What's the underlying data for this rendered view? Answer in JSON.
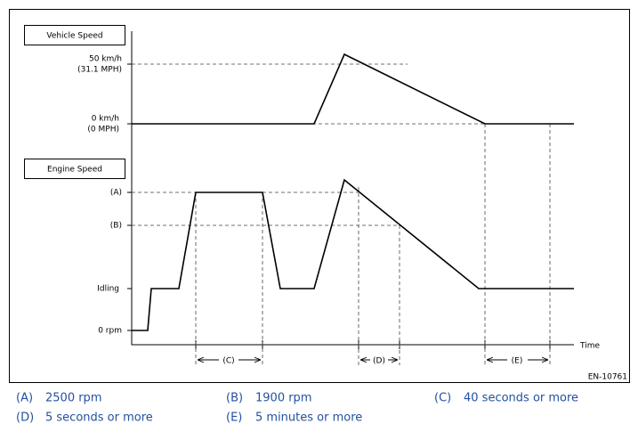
{
  "vehicle_speed": {
    "title": "Vehicle Speed",
    "high": [
      "50 km/h",
      "(31.1 MPH)"
    ],
    "zero": [
      "0 km/h",
      "(0 MPH)"
    ]
  },
  "engine_speed": {
    "title": "Engine Speed",
    "levels": [
      "(A)",
      "(B)",
      "Idling",
      "0 rpm"
    ]
  },
  "time_axis": {
    "label": "Time",
    "intervals": [
      "(C)",
      "(D)",
      "(E)"
    ]
  },
  "code": "EN-10761",
  "legend": [
    {
      "key": "(A)",
      "text": "2500 rpm"
    },
    {
      "key": "(B)",
      "text": "1900 rpm"
    },
    {
      "key": "(C)",
      "text": "40 seconds or more"
    },
    {
      "key": "(D)",
      "text": "5 seconds or more"
    },
    {
      "key": "(E)",
      "text": "5 minutes or more"
    }
  ]
}
